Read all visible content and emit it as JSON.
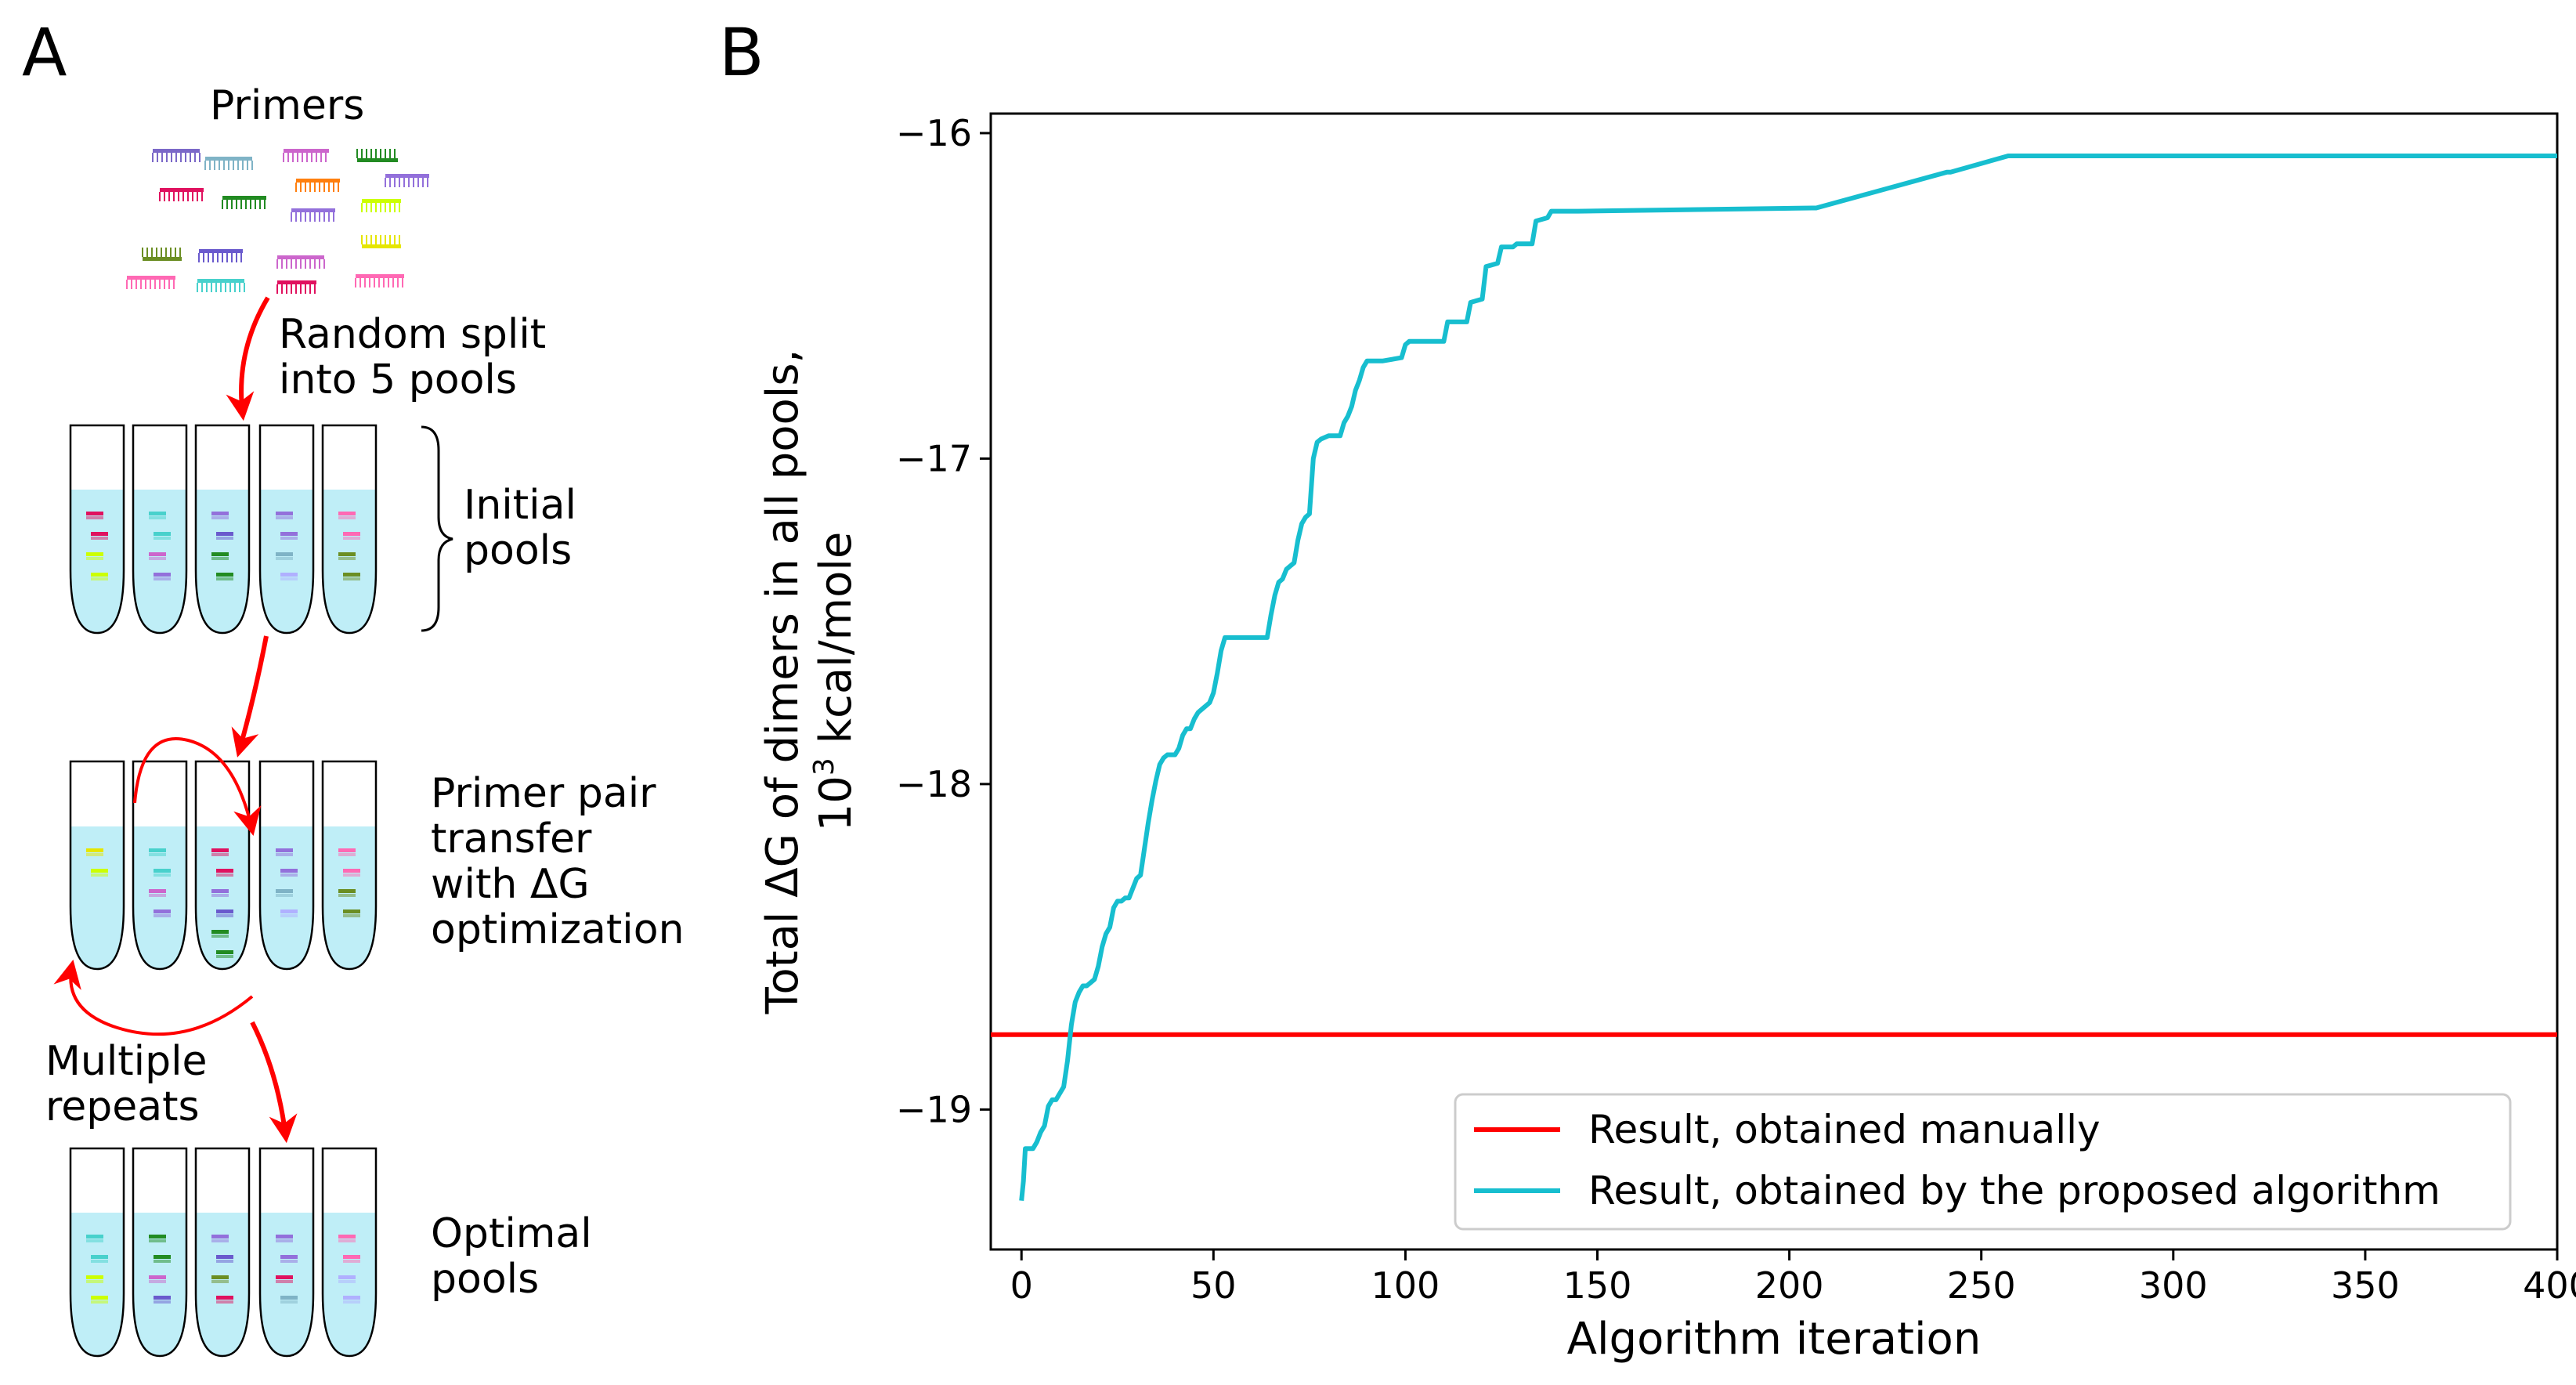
{
  "panel_a": {
    "letter": "A",
    "title": "Primers",
    "step1_label": [
      "Random split",
      "into 5 pools"
    ],
    "initial_label": [
      "Initial",
      "pools"
    ],
    "transfer_label": [
      "Primer pair",
      "transfer",
      "with ΔG",
      "optimization"
    ],
    "repeat_label": [
      "Multiple",
      "repeats"
    ],
    "optimal_label": [
      "Optimal",
      "pools"
    ],
    "colors": {
      "arrow": "#ff0000",
      "liquid": "#bfeef7",
      "primers": [
        "#7b68c8",
        "#7fb3c6",
        "#cc66cc",
        "#228b22",
        "#e0115f",
        "#ff7f0e",
        "#9370db",
        "#ccff00",
        "#6b8e23",
        "#6a5acd",
        "#ff69b4",
        "#48d1cc",
        "#b0b0ff",
        "#db7093",
        "#e6e600"
      ]
    }
  },
  "panel_b": {
    "letter": "B"
  },
  "chart_data": {
    "type": "line",
    "xlabel": "Algorithm iteration",
    "ylabel_line1": "Total ΔG of dimers in all pools,",
    "ylabel_line2_base": "10",
    "ylabel_line2_sup": "3",
    "ylabel_line2_rest": " kcal/mole",
    "xlim": [
      -8,
      400
    ],
    "ylim": [
      -19.43,
      -15.94
    ],
    "xticks": [
      0,
      50,
      100,
      150,
      200,
      250,
      300,
      350,
      400
    ],
    "yticks": [
      -16,
      -17,
      -18,
      -19
    ],
    "ytick_labels": [
      "−16",
      "−17",
      "−18",
      "−19"
    ],
    "legend_position": "lower-right",
    "series": [
      {
        "name": "Result, obtained manually",
        "color": "#ff0000",
        "x": [
          -8,
          400
        ],
        "y": [
          -18.77,
          -18.77
        ]
      },
      {
        "name": "Result, obtained by the proposed algorithm",
        "color": "#17becf",
        "x": [
          0,
          0.5,
          1,
          3,
          4,
          5,
          6,
          7,
          8,
          9,
          10,
          11,
          12,
          13,
          14,
          15,
          16,
          17,
          18,
          19,
          20,
          21,
          22,
          23,
          24,
          25,
          26,
          27,
          28,
          29,
          30,
          31,
          32,
          33,
          34,
          35,
          36,
          37,
          38,
          40,
          41,
          42,
          43,
          44,
          45,
          46,
          47,
          48,
          49,
          50,
          51,
          52,
          53,
          64,
          65,
          66,
          67,
          68,
          69,
          70,
          71,
          72,
          73,
          74,
          75,
          76,
          77,
          78,
          80,
          83,
          84,
          85,
          86,
          87,
          88,
          89,
          90,
          94,
          99,
          100,
          101,
          110,
          111,
          116,
          117,
          120,
          121,
          124,
          125,
          128,
          129,
          133,
          134,
          137,
          138,
          143,
          144,
          145,
          206,
          207,
          241,
          242,
          257,
          258,
          400
        ],
        "y": [
          -19.28,
          -19.22,
          -19.12,
          -19.12,
          -19.1,
          -19.07,
          -19.05,
          -18.99,
          -18.97,
          -18.97,
          -18.95,
          -18.93,
          -18.85,
          -18.74,
          -18.67,
          -18.64,
          -18.62,
          -18.62,
          -18.61,
          -18.6,
          -18.56,
          -18.5,
          -18.46,
          -18.44,
          -18.38,
          -18.36,
          -18.36,
          -18.35,
          -18.35,
          -18.32,
          -18.29,
          -18.28,
          -18.2,
          -18.12,
          -18.05,
          -17.99,
          -17.94,
          -17.92,
          -17.91,
          -17.91,
          -17.89,
          -17.85,
          -17.83,
          -17.83,
          -17.8,
          -17.78,
          -17.77,
          -17.76,
          -17.75,
          -17.72,
          -17.66,
          -17.59,
          -17.55,
          -17.55,
          -17.48,
          -17.42,
          -17.38,
          -17.37,
          -17.34,
          -17.33,
          -17.32,
          -17.25,
          -17.2,
          -17.18,
          -17.17,
          -17.0,
          -16.95,
          -16.94,
          -16.93,
          -16.93,
          -16.89,
          -16.87,
          -16.84,
          -16.79,
          -16.76,
          -16.72,
          -16.7,
          -16.7,
          -16.69,
          -16.65,
          -16.64,
          -16.64,
          -16.58,
          -16.58,
          -16.52,
          -16.51,
          -16.41,
          -16.4,
          -16.35,
          -16.35,
          -16.34,
          -16.34,
          -16.27,
          -16.26,
          -16.24,
          -16.24,
          -16.24,
          -16.24,
          -16.23,
          -16.23,
          -16.12,
          -16.12,
          -16.07,
          -16.07,
          -16.07
        ]
      }
    ]
  }
}
